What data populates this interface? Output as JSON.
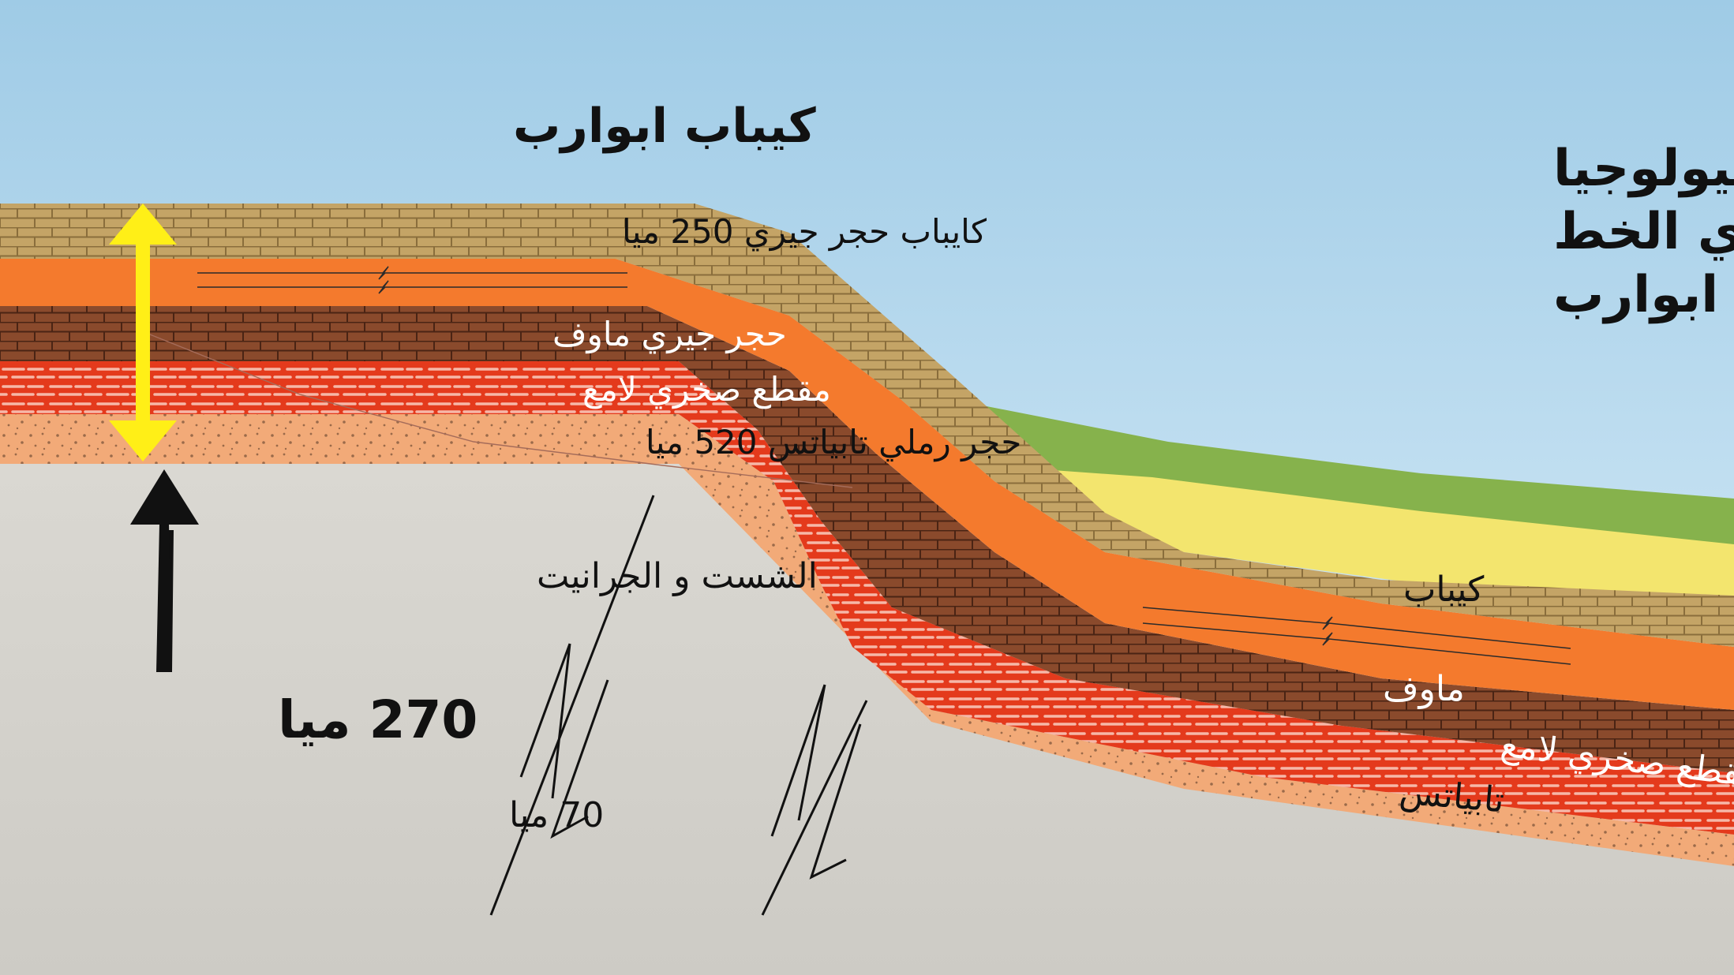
{
  "title": {
    "line1": "المقطع العرضي لـ جيولوجيا",
    "line2": "جراند كانيون عرض أحادي الخط",
    "line3": "و كايباب ابوارب"
  },
  "region_label": "كيباب ابوارب",
  "left_layers": {
    "kaibab": "كايباب حجر جيري 250 ميا",
    "muav": "حجر جيري ماوف",
    "bright_angel": "مقطع صخري لامع",
    "tapeats": "حجر رملي تابياتس 520 ميا"
  },
  "basement_label": "الشست و الجرانيت",
  "gap_label": "270 ميا",
  "fault_label": "70 ميا",
  "right_layers": {
    "kaibab": "كيباب",
    "muav": "ماوف",
    "bright_angel": "مقطع صخري لامع",
    "tapeats": "تابياتس"
  },
  "colors": {
    "sky_top": "#9fcbe6",
    "sky_bottom": "#d9eefa",
    "kaibab": "#c4a466",
    "orange_layer": "#f47a2d",
    "muav": "#8a4a2c",
    "bright_angel": "#e43a1c",
    "tapeats": "#f2aa78",
    "basement": "#d6d4cf",
    "green_layer": "#86b24c",
    "yellow_layer": "#f3e56e",
    "arrow_yellow": "#ffef17"
  }
}
